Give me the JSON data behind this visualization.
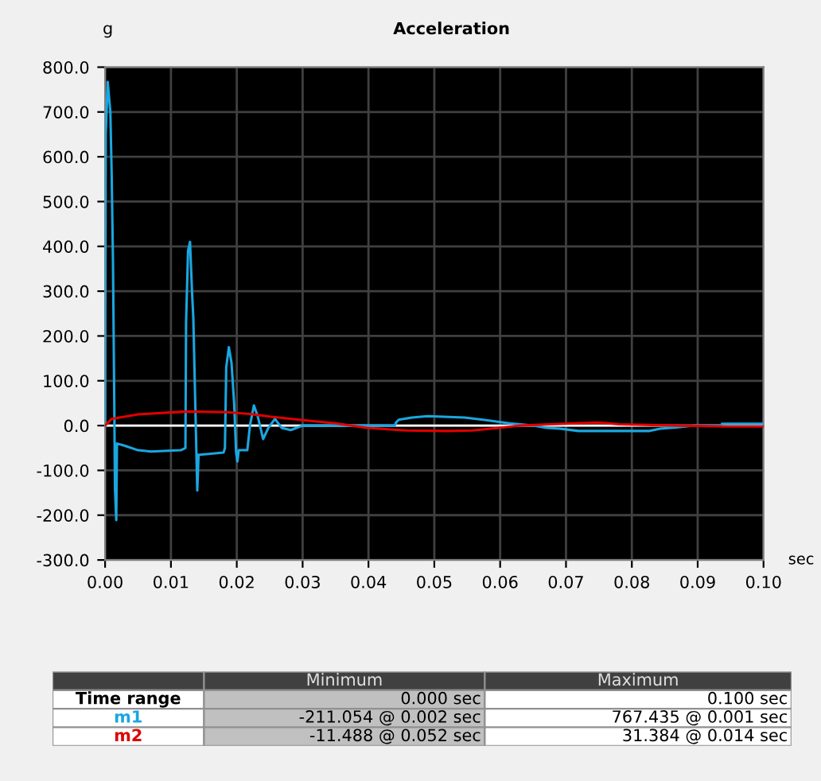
{
  "chart_data": {
    "type": "line",
    "title": "Acceleration",
    "xlabel": "sec",
    "ylabel": "g",
    "xlim": [
      0,
      0.1
    ],
    "ylim": [
      -300,
      800
    ],
    "xticks": [
      {
        "value": 0,
        "label": "0.00"
      },
      {
        "value": 0.01,
        "label": "0.01"
      },
      {
        "value": 0.02,
        "label": "0.02"
      },
      {
        "value": 0.03,
        "label": "0.03"
      },
      {
        "value": 0.04,
        "label": "0.04"
      },
      {
        "value": 0.05,
        "label": "0.05"
      },
      {
        "value": 0.06,
        "label": "0.06"
      },
      {
        "value": 0.07,
        "label": "0.07"
      },
      {
        "value": 0.08,
        "label": "0.08"
      },
      {
        "value": 0.09,
        "label": "0.09"
      },
      {
        "value": 0.1,
        "label": "0.10"
      }
    ],
    "yticks": [
      {
        "value": -300,
        "label": "-300.0"
      },
      {
        "value": -200,
        "label": "-200.0"
      },
      {
        "value": -100,
        "label": "-100.0"
      },
      {
        "value": 0,
        "label": "0.0"
      },
      {
        "value": 100,
        "label": "100.0"
      },
      {
        "value": 200,
        "label": "200.0"
      },
      {
        "value": 300,
        "label": "300.0"
      },
      {
        "value": 400,
        "label": "400.0"
      },
      {
        "value": 500,
        "label": "500.0"
      },
      {
        "value": 600,
        "label": "600.0"
      },
      {
        "value": 700,
        "label": "700.0"
      },
      {
        "value": 800,
        "label": "800.0"
      }
    ],
    "grid": true,
    "legend": false,
    "ref_lines": [
      {
        "axis": "y",
        "value": 0,
        "color": "#ffffff"
      }
    ],
    "series": [
      {
        "name": "m1",
        "color": "#1aa7e0",
        "x": [
          0,
          0.0001,
          0.0004,
          0.0008,
          0.001,
          0.0012,
          0.0014,
          0.0015,
          0.0017,
          0.0018,
          0.003,
          0.005,
          0.007,
          0.0115,
          0.0122,
          0.0123,
          0.0126,
          0.0129,
          0.0132,
          0.0134,
          0.014,
          0.0142,
          0.0145,
          0.018,
          0.0182,
          0.0184,
          0.0188,
          0.0192,
          0.0196,
          0.0199,
          0.0201,
          0.0203,
          0.0216,
          0.022,
          0.0226,
          0.0232,
          0.024,
          0.0248,
          0.0258,
          0.0268,
          0.0282,
          0.03,
          0.044,
          0.0442,
          0.0446,
          0.0466,
          0.049,
          0.0546,
          0.0574,
          0.0594,
          0.0614,
          0.065,
          0.0671,
          0.0691,
          0.0719,
          0.0827,
          0.0843,
          0.0867,
          0.0895,
          0.0935,
          0.0937,
          0.1
        ],
        "values": [
          0,
          650,
          767,
          700,
          560,
          365,
          45,
          -140,
          -211,
          -40,
          -45,
          -55,
          -58,
          -55,
          -50,
          230,
          390,
          410,
          300,
          240,
          -145,
          -65,
          -65,
          -60,
          -50,
          130,
          175,
          140,
          50,
          -60,
          -80,
          -55,
          -55,
          0,
          45,
          20,
          -30,
          -5,
          15,
          -5,
          -10,
          0,
          0,
          7,
          13,
          18,
          21,
          18,
          13,
          9,
          5,
          0,
          -5,
          -7,
          -12,
          -12,
          -7,
          -4,
          0,
          0,
          4,
          4
        ]
      },
      {
        "name": "m2",
        "color": "#e00000",
        "x": [
          0,
          0.001,
          0.005,
          0.012,
          0.014,
          0.0185,
          0.022,
          0.025,
          0.03,
          0.035,
          0.0398,
          0.0458,
          0.052,
          0.0558,
          0.0598,
          0.063,
          0.0676,
          0.0748,
          0.078,
          0.087,
          0.0946,
          0.1
        ],
        "values": [
          0,
          15,
          25,
          31,
          31,
          30,
          26,
          20,
          12,
          5,
          -5,
          -11,
          -12,
          -11,
          -5,
          0,
          3,
          7,
          3,
          0,
          -2,
          -2
        ]
      }
    ],
    "annotations": [
      "Minimum",
      "Maximum",
      "Time range",
      "0.000 sec",
      "0.100 sec",
      "-211.054 @ 0.002 sec",
      "767.435 @ 0.001 sec",
      "-11.488 @ 0.052 sec",
      "31.384 @ 0.014 sec"
    ]
  }
}
